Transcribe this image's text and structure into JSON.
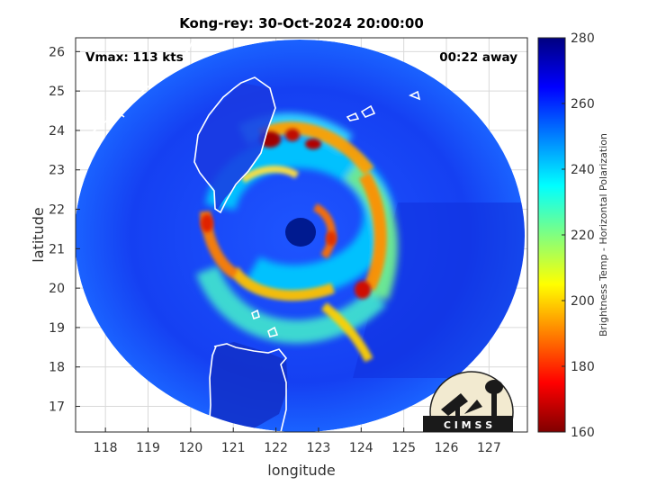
{
  "chart_data": {
    "type": "heatmap",
    "title": "Kong-rey: 30-Oct-2024 20:00:00",
    "xlabel": "longitude",
    "ylabel": "latitude",
    "xlim": [
      117.3,
      127.9
    ],
    "ylim": [
      16.35,
      26.35
    ],
    "xticks": [
      118,
      119,
      120,
      121,
      122,
      123,
      124,
      125,
      126,
      127
    ],
    "yticks": [
      17,
      18,
      19,
      20,
      21,
      22,
      23,
      24,
      25,
      26
    ],
    "grid": true,
    "annotations": {
      "vmax": "Vmax: 113 kts",
      "time_away": "00:22 away"
    },
    "swath": {
      "center_lon": 122.65,
      "center_lat": 21.3
    },
    "storm_eye": {
      "lon": 122.5,
      "lat": 21.45
    },
    "colorbar": {
      "label": "Brightness Temp - Horizontal Polarization",
      "range": [
        160,
        280
      ],
      "ticks": [
        160,
        180,
        200,
        220,
        240,
        260,
        280
      ]
    },
    "logo_text": "C I M S S"
  },
  "colors": {
    "colormap_jet": [
      "#800000",
      "#ff0000",
      "#ff8000",
      "#ffff00",
      "#80ff80",
      "#00ffff",
      "#0080ff",
      "#0000ff",
      "#000080"
    ]
  }
}
